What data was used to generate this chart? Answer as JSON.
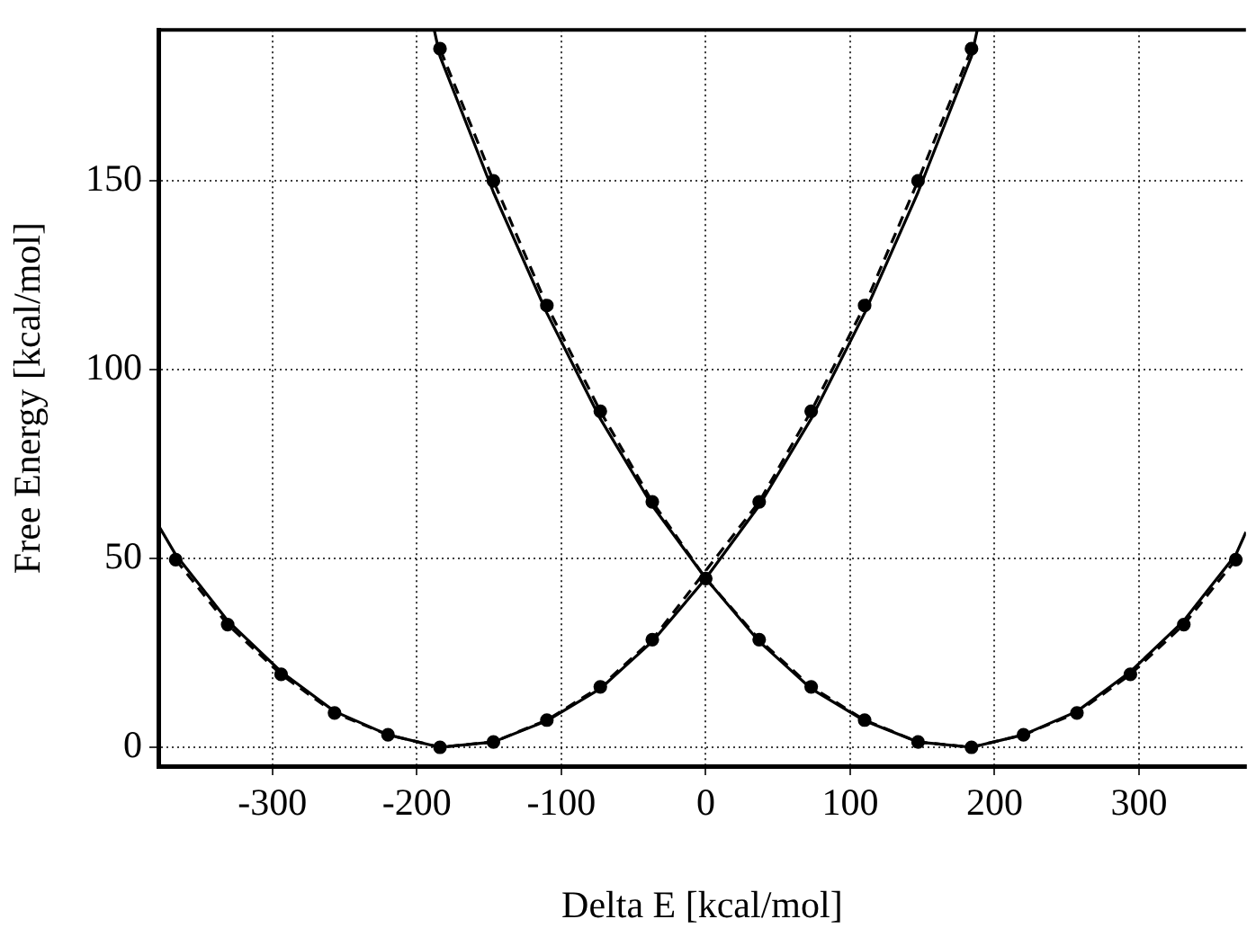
{
  "chart_data": {
    "type": "line",
    "xlabel": "Delta E [kcal/mol]",
    "ylabel": "Free Energy [kcal/mol]",
    "xlim": [
      -379,
      374
    ],
    "ylim": [
      -5,
      190
    ],
    "xticks": [
      -300,
      -200,
      -100,
      0,
      100,
      200,
      300
    ],
    "yticks": [
      0,
      50,
      100,
      150
    ],
    "grid": true,
    "series": [
      {
        "color": "#000000",
        "line_style": "solid",
        "marker": "none",
        "x": [
          -379,
          -367,
          -331,
          -294,
          -257,
          -220,
          -184,
          -147,
          -110,
          -73,
          -37,
          0,
          37,
          73,
          110,
          147,
          184,
          188
        ],
        "values": [
          58.8,
          51,
          33.5,
          20,
          9.5,
          3.3,
          0,
          1.4,
          7,
          15.5,
          28,
          44.7,
          64,
          87,
          115,
          147,
          183,
          190
        ]
      },
      {
        "color": "#000000",
        "line_style": "dashed",
        "marker": "circle",
        "x": [
          -367,
          -331,
          -294,
          -257,
          -220,
          -184,
          -147,
          -110,
          -73,
          -37,
          0,
          37,
          73,
          110,
          147,
          184
        ],
        "values": [
          49.7,
          32.5,
          19.3,
          9.1,
          3.3,
          0,
          1.4,
          7.2,
          16,
          28.5,
          null,
          65,
          89,
          117,
          150,
          185
        ]
      },
      {
        "color": "#000000",
        "line_style": "solid",
        "marker": "none",
        "x": [
          374,
          367,
          331,
          294,
          257,
          220,
          184,
          147,
          110,
          73,
          37,
          0,
          -37,
          -73,
          -110,
          -147,
          -184,
          -188
        ],
        "values": [
          57,
          51,
          33.5,
          20,
          9.5,
          3.3,
          0,
          1.4,
          7,
          15.5,
          28,
          44.7,
          64,
          87,
          115,
          147,
          183,
          190
        ]
      },
      {
        "color": "#000000",
        "line_style": "dashed",
        "marker": "circle",
        "x": [
          367,
          331,
          294,
          257,
          220,
          184,
          147,
          110,
          73,
          37,
          0,
          -37,
          -73,
          -110,
          -147,
          -184
        ],
        "values": [
          49.7,
          32.5,
          19.3,
          9.1,
          3.3,
          0,
          1.4,
          7.2,
          16,
          28.5,
          44.7,
          65,
          89,
          117,
          150,
          185
        ]
      }
    ]
  }
}
